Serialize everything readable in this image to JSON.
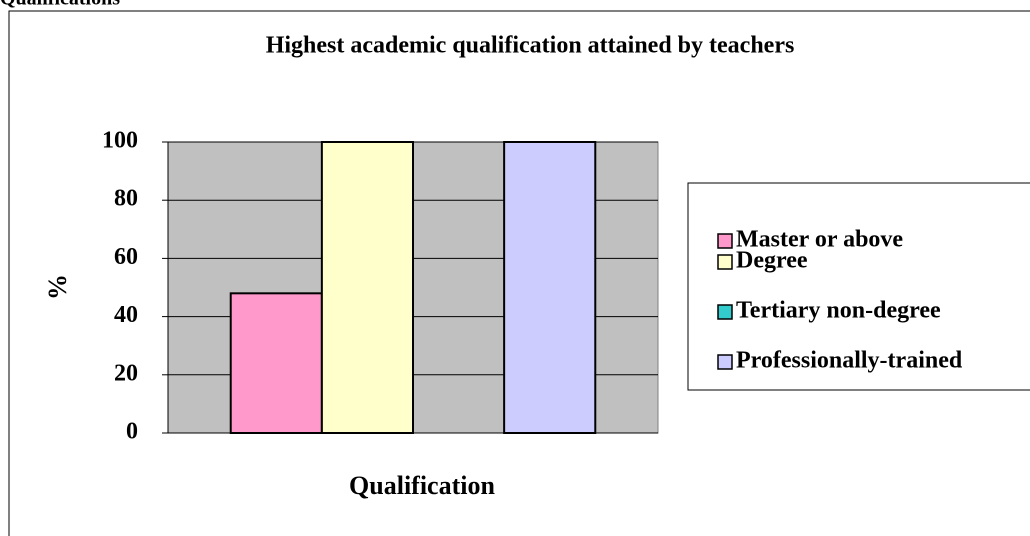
{
  "heading": "Qualifications",
  "chart_data": {
    "type": "bar",
    "title": "Highest academic qualification attained by teachers",
    "x_label": "Qualification",
    "y_label": "%",
    "categories": [
      null
    ],
    "series": [
      {
        "name": "Master or above",
        "color": "#ff99cc",
        "values": [
          48
        ]
      },
      {
        "name": "Degree",
        "color": "#ffffcc",
        "values": [
          100
        ]
      },
      {
        "name": "Tertiary non-degree",
        "color": "#33cccc",
        "values": [
          0
        ]
      },
      {
        "name": "Professionally-trained",
        "color": "#ccccff",
        "values": [
          100
        ]
      }
    ],
    "ylim": [
      0,
      100
    ],
    "yticks": [
      0,
      20,
      40,
      60,
      80,
      100
    ],
    "grid": true,
    "legend": "right"
  }
}
